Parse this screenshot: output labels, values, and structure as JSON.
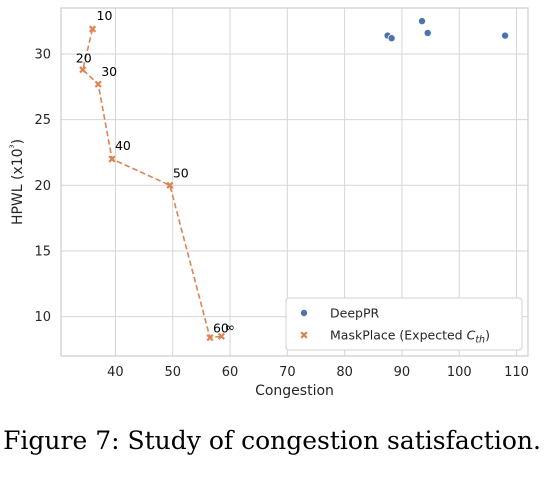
{
  "caption": "Figure 7: Study of congestion satisfaction.",
  "colors": {
    "deeppr": "#4c72b0",
    "maskplace": "#dd8452",
    "grid": "#d6d6d6",
    "frame": "#cccccc"
  },
  "chart_data": {
    "type": "scatter",
    "xlabel": "Congestion",
    "ylabel": "HPWL (x10³)",
    "xlim": [
      30.5,
      112
    ],
    "ylim": [
      7,
      33.5
    ],
    "xticks": [
      40,
      50,
      60,
      70,
      80,
      90,
      100,
      110
    ],
    "yticks": [
      10,
      15,
      20,
      25,
      30
    ],
    "grid": true,
    "legend": {
      "placement": "lower-right"
    },
    "series": [
      {
        "name": "DeepPR",
        "marker": "circle",
        "connect": false,
        "points": [
          {
            "x": 87.5,
            "y": 31.4
          },
          {
            "x": 88.2,
            "y": 31.2
          },
          {
            "x": 93.5,
            "y": 32.5
          },
          {
            "x": 94.5,
            "y": 31.6
          },
          {
            "x": 108,
            "y": 31.4
          }
        ]
      },
      {
        "name": "MaskPlace (Expected C_th)",
        "name_main": "MaskPlace (Expected ",
        "name_sym": "C",
        "name_sub": "th",
        "name_close": ")",
        "marker": "x",
        "connect": true,
        "points": [
          {
            "x": 36,
            "y": 31.9,
            "label": "10"
          },
          {
            "x": 34.3,
            "y": 28.8,
            "label": "20"
          },
          {
            "x": 37,
            "y": 27.7,
            "label": "30"
          },
          {
            "x": 39.4,
            "y": 22,
            "label": "40"
          },
          {
            "x": 49.5,
            "y": 20,
            "label": "50"
          },
          {
            "x": 56.5,
            "y": 8.4,
            "label": "60"
          },
          {
            "x": 58.5,
            "y": 8.5,
            "label": "∞"
          }
        ]
      }
    ]
  }
}
